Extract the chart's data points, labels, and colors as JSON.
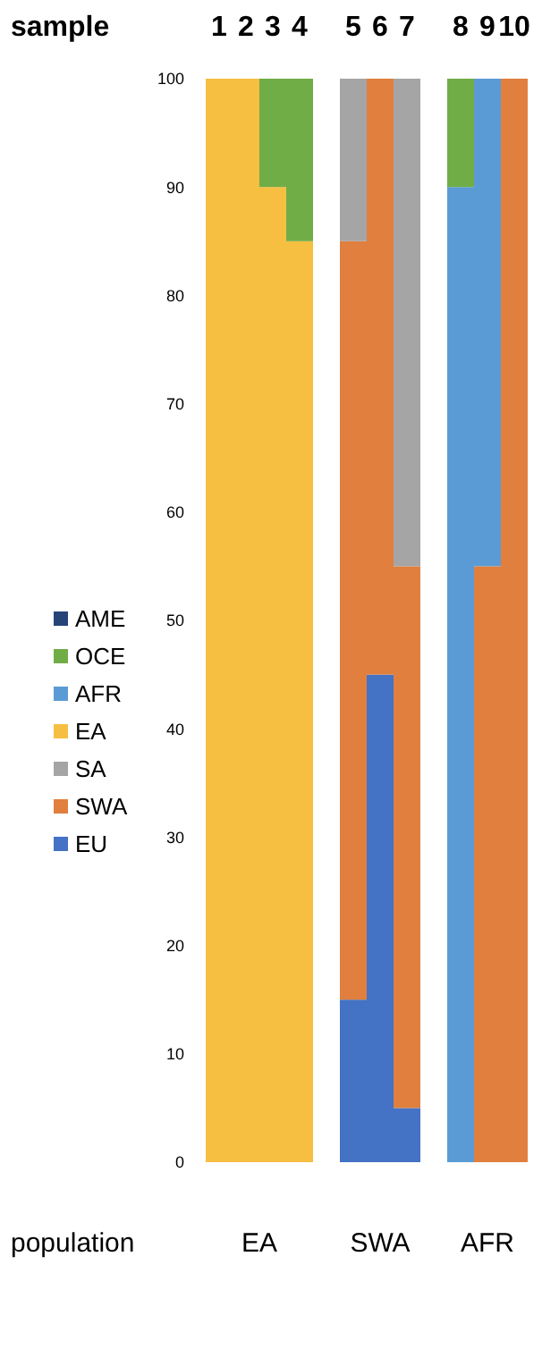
{
  "chart_data": {
    "type": "bar",
    "stacked": true,
    "xlabel": "sample",
    "categories": [
      "1",
      "2",
      "3",
      "4",
      null,
      "5",
      "6",
      "7",
      null,
      "8",
      "9",
      "10"
    ],
    "series": [
      {
        "name": "EU",
        "color": "#4472c4",
        "values": [
          0,
          0,
          0,
          0,
          null,
          15,
          45,
          5,
          null,
          0,
          0,
          0
        ]
      },
      {
        "name": "SWA",
        "color": "#e07f3e",
        "values": [
          0,
          0,
          0,
          0,
          null,
          70,
          55,
          50,
          null,
          0,
          55,
          100
        ]
      },
      {
        "name": "SA",
        "color": "#a5a5a5",
        "values": [
          0,
          0,
          0,
          0,
          null,
          15,
          0,
          45,
          null,
          0,
          0,
          0
        ]
      },
      {
        "name": "EA",
        "color": "#f6bf41",
        "values": [
          100,
          100,
          90,
          85,
          null,
          0,
          0,
          0,
          null,
          0,
          0,
          0
        ]
      },
      {
        "name": "AFR",
        "color": "#5b9bd5",
        "values": [
          0,
          0,
          0,
          0,
          null,
          0,
          0,
          0,
          null,
          90,
          45,
          0
        ]
      },
      {
        "name": "OCE",
        "color": "#70ad47",
        "values": [
          0,
          0,
          10,
          15,
          null,
          0,
          0,
          0,
          null,
          10,
          0,
          0
        ]
      },
      {
        "name": "AME",
        "color": "#264478",
        "values": [
          0,
          0,
          0,
          0,
          null,
          0,
          0,
          0,
          null,
          0,
          0,
          0
        ]
      }
    ],
    "ylim": [
      0,
      100
    ],
    "yticks": [
      0,
      10,
      20,
      30,
      40,
      50,
      60,
      70,
      80,
      90,
      100
    ],
    "legend": "left",
    "grid": false,
    "annotations": [
      "population",
      "EA",
      "SWA",
      "AFR"
    ]
  }
}
